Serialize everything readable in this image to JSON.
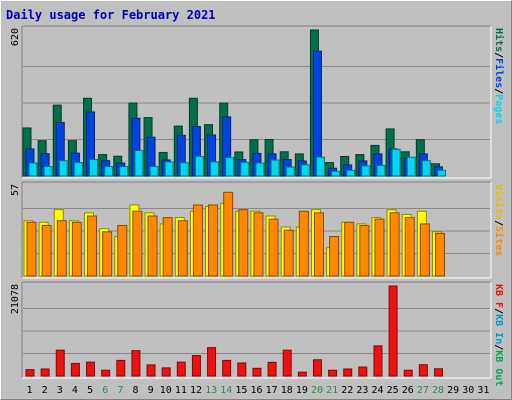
{
  "chart_data": {
    "type": "bar",
    "title": "Daily usage for February 2021",
    "colors": {
      "background": "#c0c0c0",
      "title": "#0000c0",
      "hits": "#006f4a",
      "files": "#0044e0",
      "pages": "#00d8f0",
      "visits": "#ffff00",
      "sites": "#ff8800",
      "kb_in": "#0099cc",
      "kb_out": "#00aa55",
      "kbytes": "#ee1111",
      "weekend_day_label": "#2a8a4a",
      "day_label": "#000000"
    },
    "x": [
      "1",
      "2",
      "3",
      "4",
      "5",
      "6",
      "7",
      "8",
      "9",
      "10",
      "11",
      "12",
      "13",
      "14",
      "15",
      "16",
      "17",
      "18",
      "19",
      "20",
      "21",
      "22",
      "23",
      "24",
      "25",
      "26",
      "27",
      "28",
      "29",
      "30",
      "31"
    ],
    "weekend_days": [
      "6",
      "7",
      "13",
      "14",
      "20",
      "21",
      "27",
      "28"
    ],
    "panels": [
      {
        "name": "hits_files_pages",
        "ymax_label": "620",
        "ylim": [
          0,
          620
        ],
        "right_label_parts": [
          {
            "text": "Hits",
            "color": "#006f4a"
          },
          {
            "text": "/",
            "color": "#000000"
          },
          {
            "text": "Files",
            "color": "#0044e0"
          },
          {
            "text": "/",
            "color": "#000000"
          },
          {
            "text": "Pages",
            "color": "#00d8f0"
          }
        ],
        "series": [
          {
            "name": "Hits",
            "color": "#006f4a",
            "values": [
              204,
              150,
              301,
              150,
              330,
              91,
              84,
              310,
              248,
              100,
              212,
              330,
              218,
              310,
              102,
              154,
              155,
              103,
              94,
              620,
              57,
              83,
              91,
              130,
              200,
              103,
              154,
              52,
              0,
              0,
              0
            ]
          },
          {
            "name": "Files",
            "color": "#0044e0",
            "values": [
              115,
              95,
              227,
              97,
              272,
              65,
              55,
              245,
              165,
              68,
              173,
              210,
              174,
              251,
              70,
              96,
              94,
              70,
              64,
              530,
              33,
              47,
              64,
              94,
              115,
              75,
              94,
              39,
              0,
              0,
              0
            ]
          },
          {
            "name": "Pages",
            "color": "#00d8f0",
            "values": [
              55,
              40,
              65,
              57,
              70,
              40,
              40,
              108,
              40,
              60,
              56,
              83,
              60,
              78,
              58,
              55,
              68,
              38,
              48,
              80,
              20,
              24,
              43,
              45,
              113,
              80,
              65,
              24,
              0,
              0,
              0
            ]
          }
        ]
      },
      {
        "name": "visits_sites",
        "ymax_label": "57",
        "ylim": [
          0,
          57
        ],
        "right_label_parts": [
          {
            "text": "Visits",
            "color": "#e0c000"
          },
          {
            "text": "/",
            "color": "#000000"
          },
          {
            "text": "Sites",
            "color": "#ff8800"
          }
        ],
        "series": [
          {
            "name": "Visits",
            "color": "#ffff00",
            "values": [
              35,
              34,
              42,
              35,
              40,
              30,
              25,
              45,
              40,
              33,
              37,
              41,
              44,
              46,
              41,
              41,
              38,
              31,
              31,
              42,
              18,
              34,
              33,
              37,
              42,
              39,
              41,
              28,
              0,
              0,
              0
            ]
          },
          {
            "name": "Sites",
            "color": "#ff8800",
            "values": [
              34,
              32,
              35,
              34,
              38,
              28,
              32,
              41,
              38,
              37,
              35,
              45,
              45,
              53,
              42,
              40,
              36,
              29,
              41,
              40,
              25,
              34,
              32,
              36,
              40,
              37,
              33,
              27,
              0,
              0,
              0
            ]
          }
        ]
      },
      {
        "name": "kbytes",
        "ymax_label": "21078",
        "ylim": [
          0,
          21078
        ],
        "right_label_parts": [
          {
            "text": "KB F",
            "color": "#ee1111"
          },
          {
            "text": "/",
            "color": "#000000"
          },
          {
            "text": "KB In",
            "color": "#0099cc"
          },
          {
            "text": "/",
            "color": "#000000"
          },
          {
            "text": "KB Out",
            "color": "#00aa55"
          }
        ],
        "series": [
          {
            "name": "KB F",
            "color": "#ee1111",
            "values": [
              1500,
              1650,
              6050,
              2950,
              3250,
              1350,
              3650,
              5950,
              2600,
              1900,
              3250,
              4800,
              6650,
              3650,
              3050,
              1800,
              3200,
              6050,
              900,
              3800,
              1350,
              1650,
              2100,
              7050,
              21078,
              1350,
              2650,
              1700,
              0,
              0,
              0
            ]
          }
        ]
      }
    ]
  }
}
